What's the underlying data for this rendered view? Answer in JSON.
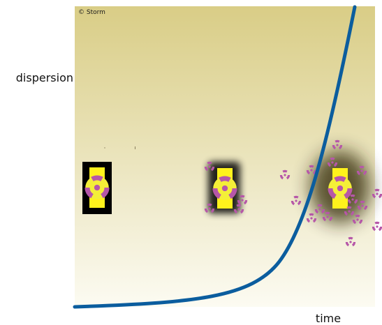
{
  "figure": {
    "copyright": "© Storm",
    "y_axis_label": "dispersion",
    "x_axis_label": "time"
  },
  "colors": {
    "panel_top": "#d9cd86",
    "panel_bottom": "#fcfbf2",
    "curve": "#0b5d9e",
    "container_yellow": "#fff21c",
    "trefoil_magenta": "#b657a8",
    "trefoil_yellow": "#f4ef38",
    "box_black": "#000000"
  },
  "icons": {
    "container": "radioactive-container-icon",
    "particle": "radiation-trefoil-icon"
  },
  "stages": [
    {
      "stage": "contained",
      "halo": "none",
      "particles": 0
    },
    {
      "stage": "leaking",
      "halo": "soft",
      "particles": 4
    },
    {
      "stage": "dispersed",
      "halo": "wide",
      "particles": 16
    }
  ]
}
